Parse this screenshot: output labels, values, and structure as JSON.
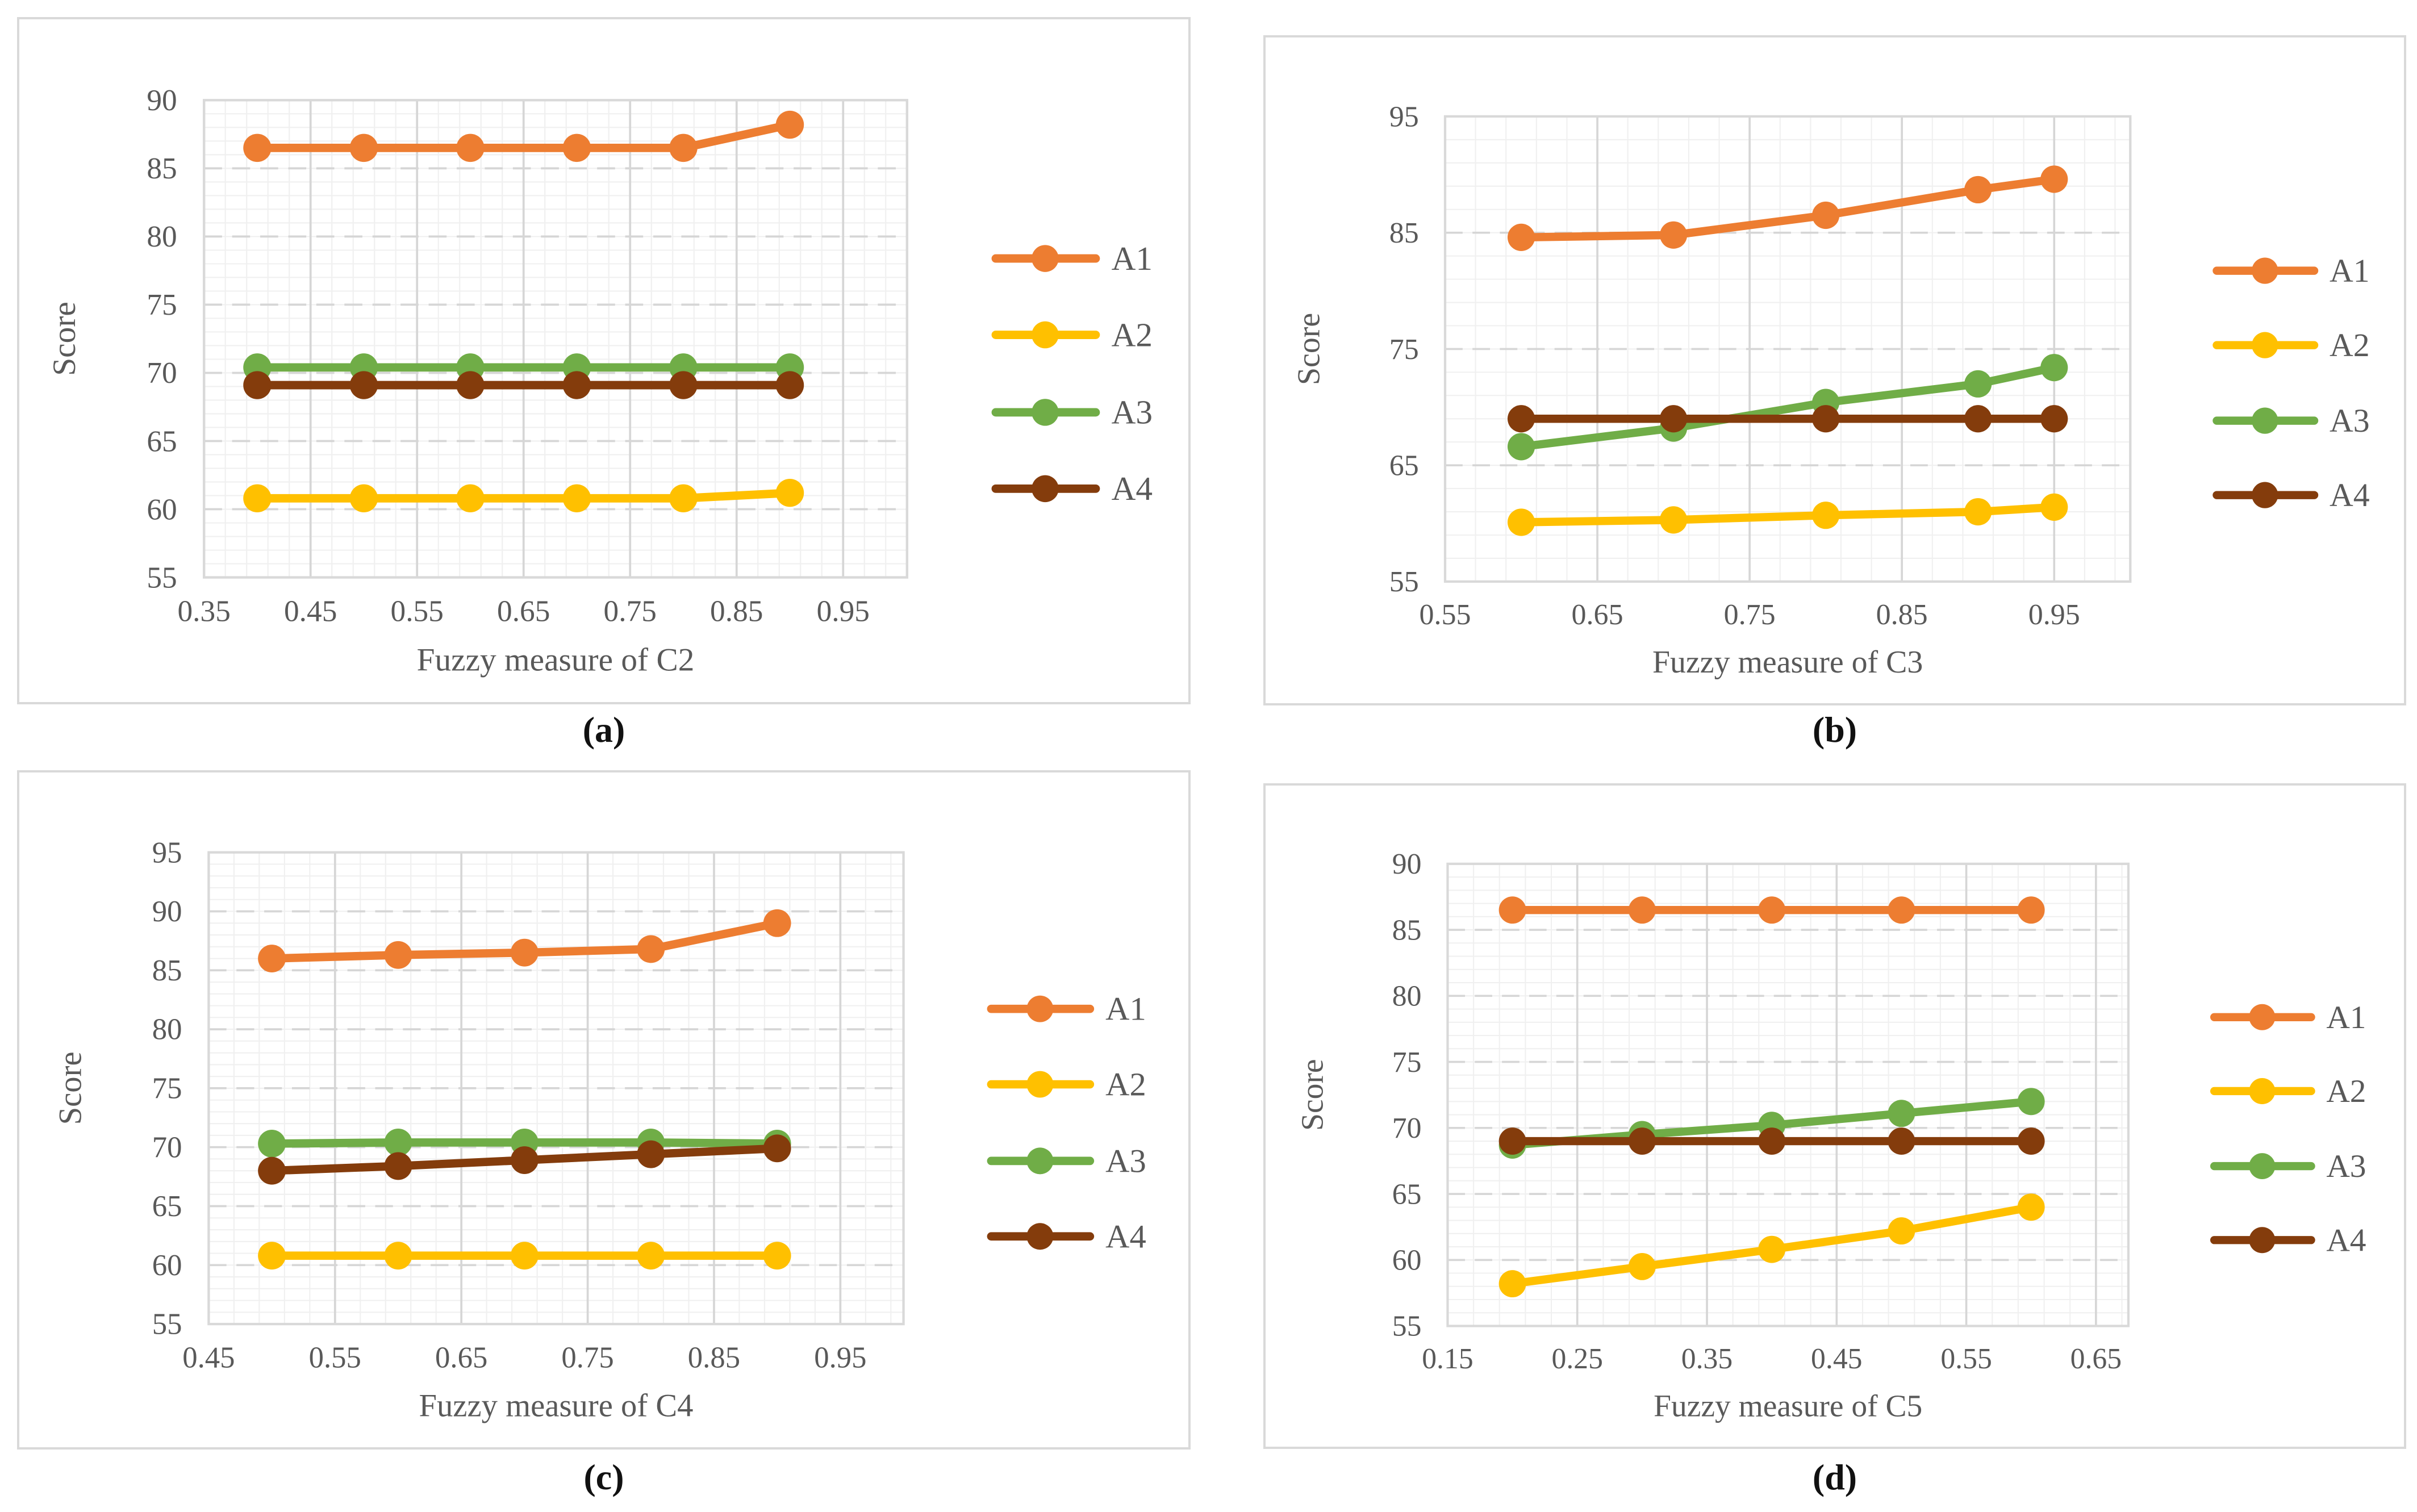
{
  "figure": {
    "ylabel": "Score",
    "legend_position": "right",
    "grid": true
  },
  "colors": {
    "series": {
      "A1": "#ED7D31",
      "A2": "#FFC000",
      "A3": "#70AD47",
      "A4": "#843C0C"
    },
    "axis_text": "#595959",
    "grid_major": "#d6d6d6",
    "grid_minor": "#f0f0f0",
    "plot_border": "#d9d9d9",
    "panel_border": "#d9d9d9",
    "caption_text": "#111111"
  },
  "chart_data": [
    {
      "type": "line",
      "caption": "(a)",
      "title": "",
      "xlabel": "Fuzzy measure of C2",
      "ylabel": "Score",
      "xlim": [
        0.35,
        1.01
      ],
      "ylim": [
        55,
        90
      ],
      "x_ticks": [
        "0.35",
        "0.45",
        "0.55",
        "0.65",
        "0.75",
        "0.85",
        "0.95"
      ],
      "y_ticks": [
        "55",
        "60",
        "65",
        "70",
        "75",
        "80",
        "85",
        "90"
      ],
      "x_minor_step": 0.02,
      "y_minor_step": 1,
      "x": [
        0.4,
        0.5,
        0.6,
        0.7,
        0.8,
        0.9
      ],
      "series": [
        {
          "name": "A1",
          "values": [
            86.5,
            86.5,
            86.5,
            86.5,
            86.5,
            88.2
          ]
        },
        {
          "name": "A2",
          "values": [
            60.8,
            60.8,
            60.8,
            60.8,
            60.8,
            61.2
          ]
        },
        {
          "name": "A3",
          "values": [
            70.4,
            70.4,
            70.4,
            70.4,
            70.4,
            70.4
          ]
        },
        {
          "name": "A4",
          "values": [
            69.1,
            69.1,
            69.1,
            69.1,
            69.1,
            69.1
          ]
        }
      ],
      "legend": [
        "A1",
        "A2",
        "A3",
        "A4"
      ]
    },
    {
      "type": "line",
      "caption": "(b)",
      "title": "",
      "xlabel": "Fuzzy measure of C3",
      "ylabel": "Score",
      "xlim": [
        0.55,
        1.0
      ],
      "ylim": [
        55,
        95
      ],
      "x_ticks": [
        "0.55",
        "0.65",
        "0.75",
        "0.85",
        "0.95"
      ],
      "y_ticks": [
        "55",
        "65",
        "75",
        "85",
        "95"
      ],
      "x_minor_step": 0.02,
      "y_minor_step": 2,
      "x": [
        0.6,
        0.7,
        0.8,
        0.9,
        0.95
      ],
      "series": [
        {
          "name": "A1",
          "values": [
            84.6,
            84.8,
            86.5,
            88.7,
            89.6
          ]
        },
        {
          "name": "A2",
          "values": [
            60.1,
            60.3,
            60.7,
            61.0,
            61.4
          ]
        },
        {
          "name": "A3",
          "values": [
            66.6,
            68.2,
            70.4,
            72.0,
            73.4
          ]
        },
        {
          "name": "A4",
          "values": [
            69.0,
            69.0,
            69.0,
            69.0,
            69.0
          ]
        }
      ],
      "legend": [
        "A1",
        "A2",
        "A3",
        "A4"
      ]
    },
    {
      "type": "line",
      "caption": "(c)",
      "title": "",
      "xlabel": "Fuzzy measure of C4",
      "ylabel": "Score",
      "xlim": [
        0.45,
        1.0
      ],
      "ylim": [
        55,
        95
      ],
      "x_ticks": [
        "0.45",
        "0.55",
        "0.65",
        "0.75",
        "0.85",
        "0.95"
      ],
      "y_ticks": [
        "55",
        "60",
        "65",
        "70",
        "75",
        "80",
        "85",
        "90",
        "95"
      ],
      "x_minor_step": 0.02,
      "y_minor_step": 1,
      "x": [
        0.5,
        0.6,
        0.7,
        0.8,
        0.9
      ],
      "series": [
        {
          "name": "A1",
          "values": [
            86.0,
            86.3,
            86.5,
            86.8,
            89.0
          ]
        },
        {
          "name": "A2",
          "values": [
            60.8,
            60.8,
            60.8,
            60.8,
            60.8
          ]
        },
        {
          "name": "A3",
          "values": [
            70.3,
            70.4,
            70.4,
            70.4,
            70.3
          ]
        },
        {
          "name": "A4",
          "values": [
            68.0,
            68.4,
            68.9,
            69.4,
            69.9
          ]
        }
      ],
      "legend": [
        "A1",
        "A2",
        "A3",
        "A4"
      ]
    },
    {
      "type": "line",
      "caption": "(d)",
      "title": "",
      "xlabel": "Fuzzy measure of C5",
      "ylabel": "Score",
      "xlim": [
        0.15,
        0.675
      ],
      "ylim": [
        55,
        90
      ],
      "x_ticks": [
        "0.15",
        "0.25",
        "0.35",
        "0.45",
        "0.55",
        "0.65"
      ],
      "y_ticks": [
        "55",
        "60",
        "65",
        "70",
        "75",
        "80",
        "85",
        "90"
      ],
      "x_minor_step": 0.02,
      "y_minor_step": 1,
      "x": [
        0.2,
        0.3,
        0.4,
        0.5,
        0.6
      ],
      "series": [
        {
          "name": "A1",
          "values": [
            86.5,
            86.5,
            86.5,
            86.5,
            86.5
          ]
        },
        {
          "name": "A2",
          "values": [
            58.2,
            59.5,
            60.8,
            62.2,
            64.0
          ]
        },
        {
          "name": "A3",
          "values": [
            68.7,
            69.5,
            70.2,
            71.1,
            72.0
          ]
        },
        {
          "name": "A4",
          "values": [
            69.0,
            69.0,
            69.0,
            69.0,
            69.0
          ]
        }
      ],
      "legend": [
        "A1",
        "A2",
        "A3",
        "A4"
      ]
    }
  ]
}
